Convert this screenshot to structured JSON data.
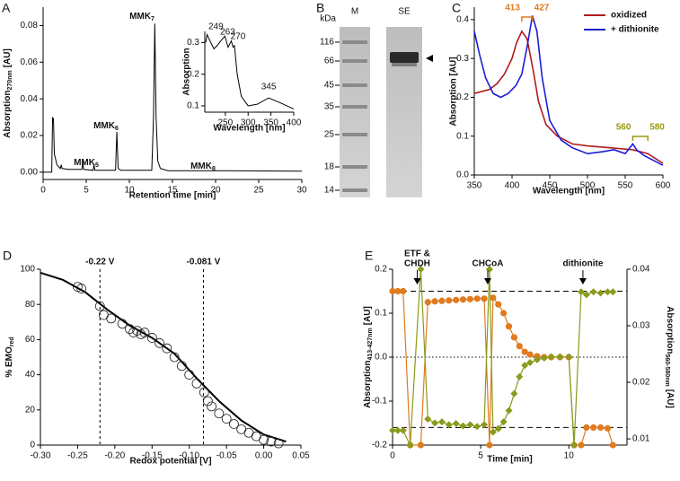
{
  "chart_data": [
    {
      "type": "line",
      "panel": "A",
      "xlabel": "Retention time [min]",
      "ylabel": {
        "text": "Absorption",
        "sub": "270nm",
        "unit": "[AU]"
      },
      "x": [
        0,
        1.0,
        1.1,
        1.2,
        1.3,
        1.6,
        2.0,
        2.1,
        2.2,
        3.0,
        4.5,
        4.6,
        4.7,
        5.8,
        5.9,
        6.0,
        7.0,
        8.4,
        8.55,
        8.7,
        9.0,
        12.6,
        12.8,
        12.95,
        13.1,
        13.3,
        13.6,
        14.5,
        20,
        30
      ],
      "values": [
        0,
        0,
        0.03,
        0.029,
        0.01,
        0.004,
        0.002,
        0.004,
        0.002,
        0.0015,
        0.0015,
        0.006,
        0.0015,
        0.001,
        0.004,
        0.001,
        0.001,
        0.001,
        0.022,
        0.002,
        0.001,
        0.001,
        0.03,
        0.081,
        0.03,
        0.006,
        0.002,
        0.0008,
        0.0008,
        0.0005
      ],
      "color": "#000000",
      "xlim": [
        0,
        30
      ],
      "xticks": [
        0,
        5,
        10,
        15,
        20,
        25,
        30
      ],
      "ylim": [
        -0.004,
        0.09
      ],
      "yticks": [
        {
          "value": 0,
          "label": "0.00"
        },
        0.02,
        0.04,
        0.06,
        0.08
      ],
      "annotations": [
        {
          "text": "MMK",
          "sub": "5"
        },
        {
          "text": "MMK",
          "sub": "6"
        },
        {
          "text": "MMK",
          "sub": "7"
        },
        {
          "text": "MMK",
          "sub": "8"
        }
      ]
    },
    {
      "type": "line",
      "xlabel": "Wavelength [nm]",
      "ylabel": "Absorption",
      "x": [
        207,
        210,
        218,
        225,
        232,
        240,
        249,
        256,
        263,
        267,
        270,
        276,
        285,
        300,
        320,
        345,
        370,
        400
      ],
      "values": [
        0.3,
        0.325,
        0.3,
        0.28,
        0.29,
        0.305,
        0.32,
        0.285,
        0.305,
        0.285,
        0.29,
        0.2,
        0.13,
        0.1,
        0.105,
        0.125,
        0.11,
        0.09
      ],
      "color": "#000000",
      "xlim": [
        205,
        400
      ],
      "xticks": [
        250,
        300,
        350,
        400
      ],
      "ylim": [
        0.08,
        0.335
      ],
      "yticks": [
        0.1,
        0.2,
        0.3
      ],
      "peak_labels": [
        249,
        263,
        270,
        345
      ]
    },
    {
      "type": "gel",
      "panel": "B",
      "unit": "kDa",
      "lanes": [
        "M",
        "SE"
      ],
      "markers": [
        116,
        66,
        45,
        35,
        25,
        18,
        14
      ]
    },
    {
      "type": "line",
      "panel": "C",
      "xlabel": "Wavelength [nm]",
      "ylabel": "Absorption [AU]",
      "xlim": [
        350,
        600
      ],
      "xticks": [
        350,
        400,
        450,
        500,
        550,
        600
      ],
      "ylim": [
        0,
        0.432
      ],
      "yticks": [
        {
          "value": 0,
          "label": "0.0"
        },
        0.1,
        0.2,
        0.3,
        0.4
      ],
      "series": [
        {
          "name": "oxidized",
          "color": "#b0191e",
          "x": [
            350,
            360,
            370,
            380,
            390,
            400,
            406,
            413,
            420,
            428,
            435,
            445,
            460,
            480,
            500,
            530,
            560,
            580,
            600
          ],
          "values": [
            0.21,
            0.215,
            0.22,
            0.235,
            0.26,
            0.3,
            0.34,
            0.37,
            0.35,
            0.27,
            0.19,
            0.13,
            0.1,
            0.08,
            0.075,
            0.07,
            0.065,
            0.055,
            0.03
          ]
        },
        {
          "name": "+ dithionite",
          "color": "#1c1cd8",
          "x": [
            350,
            357,
            365,
            375,
            385,
            395,
            405,
            413,
            420,
            427,
            433,
            440,
            450,
            465,
            480,
            500,
            520,
            535,
            550,
            556,
            560,
            565,
            575,
            590,
            600
          ],
          "values": [
            0.37,
            0.31,
            0.25,
            0.21,
            0.2,
            0.21,
            0.23,
            0.26,
            0.33,
            0.41,
            0.37,
            0.25,
            0.14,
            0.09,
            0.07,
            0.055,
            0.06,
            0.065,
            0.055,
            0.07,
            0.08,
            0.065,
            0.05,
            0.035,
            0.025
          ]
        }
      ],
      "brackets": [
        {
          "from": 413,
          "to": 427,
          "color": "#e07b1f"
        },
        {
          "from": 560,
          "to": 580,
          "color": "#9a9a10"
        }
      ]
    },
    {
      "type": "scatter",
      "panel": "D",
      "xlabel": "Redox potential [V]",
      "ylabel": {
        "text": "% EMO",
        "sub": "red"
      },
      "x": [
        -0.25,
        -0.245,
        -0.22,
        -0.215,
        -0.205,
        -0.19,
        -0.18,
        -0.175,
        -0.17,
        -0.165,
        -0.16,
        -0.15,
        -0.14,
        -0.13,
        -0.12,
        -0.11,
        -0.1,
        -0.09,
        -0.08,
        -0.075,
        -0.07,
        -0.06,
        -0.05,
        -0.04,
        -0.03,
        -0.02,
        -0.01,
        0.0,
        0.01,
        0.02
      ],
      "values": [
        90,
        89,
        79,
        74,
        72,
        69,
        66,
        64,
        65,
        63,
        64,
        61,
        58,
        55,
        50,
        45,
        40,
        35,
        30,
        25,
        22,
        18,
        15,
        12,
        9,
        7,
        5,
        3,
        2,
        1
      ],
      "fit": {
        "x": [
          -0.3,
          -0.27,
          -0.24,
          -0.21,
          -0.18,
          -0.15,
          -0.12,
          -0.09,
          -0.06,
          -0.03,
          0,
          0.03
        ],
        "values": [
          98,
          94,
          87,
          77,
          68,
          61,
          52,
          38,
          25,
          14,
          6,
          2
        ]
      },
      "vlines": [
        {
          "value": -0.22,
          "label": "-0.22 V"
        },
        {
          "value": -0.081,
          "label": "-0.081 V"
        }
      ],
      "xlim": [
        -0.3,
        0.05
      ],
      "xticks": [
        {
          "value": -0.3,
          "label": "-0.30"
        },
        -0.25,
        {
          "value": -0.2,
          "label": "-0.20"
        },
        -0.15,
        {
          "value": -0.1,
          "label": "-0.10"
        },
        -0.05,
        {
          "value": 0,
          "label": "0.00"
        },
        0.05
      ],
      "ylim": [
        0,
        100
      ],
      "yticks": [
        0,
        20,
        40,
        60,
        80,
        100
      ]
    },
    {
      "type": "dual",
      "panel": "E",
      "xlabel": "Time [min]",
      "ylabel": {
        "text": "Absorption",
        "sub": "413-427nm",
        "unit": "[AU]"
      },
      "y2label": {
        "text": "Absorption",
        "sub": "560-580nm",
        "unit": "[AU]"
      },
      "x": [
        0,
        0.3,
        0.6,
        1.0,
        1.6,
        2.0,
        2.4,
        2.8,
        3.2,
        3.6,
        4.0,
        4.4,
        4.8,
        5.2,
        5.5,
        5.7,
        6.0,
        6.3,
        6.6,
        6.9,
        7.2,
        7.5,
        7.8,
        8.2,
        8.6,
        9.0,
        9.5,
        10.0,
        10.3,
        10.7,
        11.0,
        11.4,
        11.8,
        12.2,
        12.5
      ],
      "series": [
        {
          "color": "#e07b1f",
          "marker": "circle",
          "values": [
            0.15,
            0.15,
            0.15,
            -0.2,
            -0.2,
            0.125,
            0.127,
            0.128,
            0.129,
            0.13,
            0.131,
            0.132,
            0.133,
            0.133,
            -0.2,
            0.135,
            0.12,
            0.1,
            0.07,
            0.045,
            0.025,
            0.012,
            0.006,
            0.002,
            0.0,
            0.0,
            0.0,
            0.0,
            -0.2,
            -0.2,
            -0.16,
            -0.16,
            -0.16,
            -0.162,
            -0.2
          ]
        },
        {
          "color": "#8a9a1b",
          "marker": "diamond",
          "axis": "y2",
          "values": [
            0.0115,
            0.0115,
            0.0115,
            0.0089,
            0.04,
            0.0135,
            0.0128,
            0.013,
            0.0125,
            0.0127,
            0.0123,
            0.0125,
            0.0122,
            0.0125,
            0.04,
            0.0112,
            0.0118,
            0.013,
            0.015,
            0.018,
            0.021,
            0.023,
            0.0235,
            0.024,
            0.0243,
            0.0245,
            0.0245,
            0.0245,
            0.0089,
            0.036,
            0.0355,
            0.036,
            0.0358,
            0.036,
            0.036
          ]
        }
      ],
      "hlines": [
        {
          "value": 0.15,
          "style": "dashed"
        },
        {
          "value": -0.16,
          "style": "dashed"
        },
        {
          "value": 0,
          "style": "dotted"
        }
      ],
      "events": [
        {
          "x": 1.4,
          "label": [
            "ETF &",
            "CHDH"
          ]
        },
        {
          "x": 5.4,
          "label": [
            "CHCoA"
          ]
        },
        {
          "x": 10.8,
          "label": [
            "dithionite"
          ]
        }
      ],
      "xlim": [
        0,
        13.3
      ],
      "xticks": [
        0,
        5,
        10
      ],
      "ylim": [
        -0.2,
        0.2
      ],
      "yticks": [
        -0.2,
        -0.1,
        {
          "value": 0,
          "label": "0.0"
        },
        0.1,
        0.2
      ],
      "y2lim": [
        0.0089,
        0.04
      ],
      "y2ticks": [
        0.01,
        0.02,
        0.03,
        0.04
      ]
    }
  ]
}
